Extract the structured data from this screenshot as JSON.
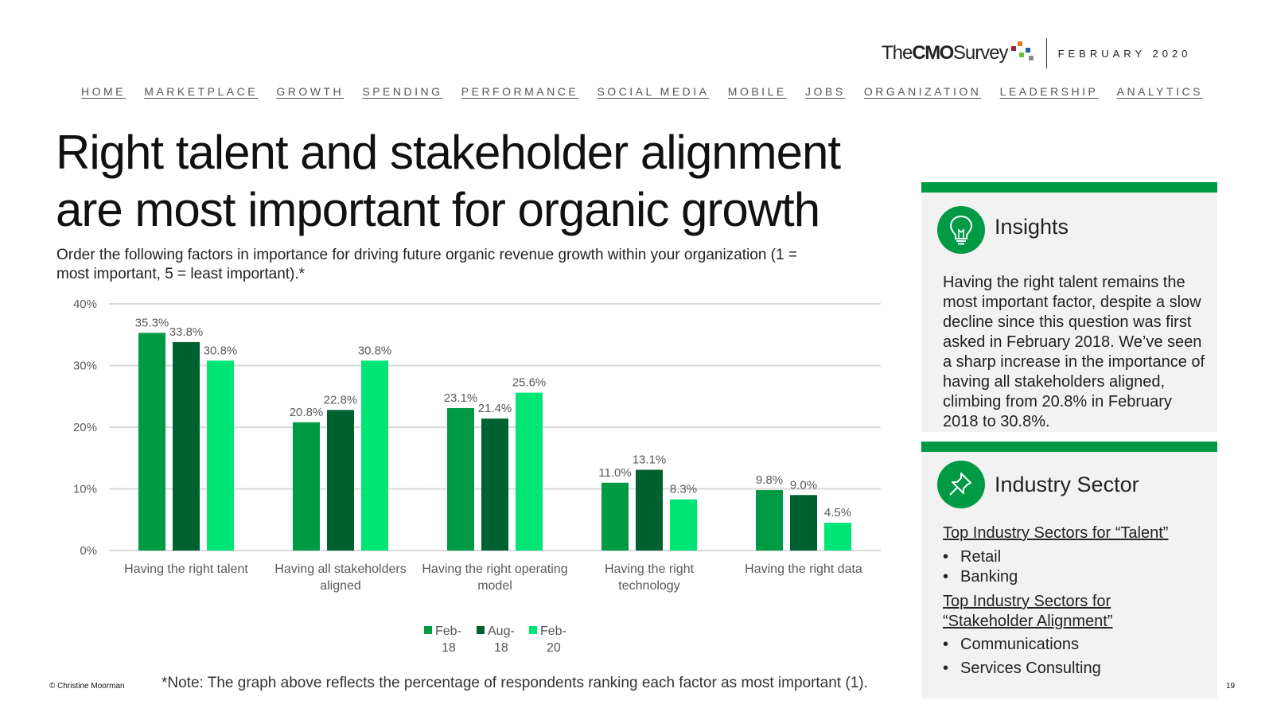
{
  "header": {
    "brand_prefix": "The",
    "brand_bold": "CMO",
    "brand_suffix": "Survey",
    "date": "FEBRUARY 2020",
    "nav": [
      "HOME",
      "MARKETPLACE",
      "GROWTH",
      "SPENDING",
      "PERFORMANCE",
      "SOCIAL MEDIA",
      "MOBILE",
      "JOBS",
      "ORGANIZATION",
      "LEADERSHIP",
      "ANALYTICS"
    ],
    "dot_colors": [
      "#9b2335",
      "#e07b1a",
      "#1f5fa8",
      "#6bbf3b",
      "#8a8a8a"
    ]
  },
  "title": "Right talent and stakeholder alignment are most important for organic growth",
  "question": "Order the following factors in importance for driving future organic revenue growth within your organization (1 = most important, 5 = least important).*",
  "chart_data": {
    "type": "bar",
    "title": "",
    "xlabel": "",
    "ylabel": "",
    "ylim": [
      0,
      40
    ],
    "yticks": [
      "0%",
      "10%",
      "20%",
      "30%",
      "40%"
    ],
    "grid": true,
    "categories": [
      [
        "Having the right talent"
      ],
      [
        "Having all stakeholders",
        "aligned"
      ],
      [
        "Having the right operating",
        "model"
      ],
      [
        "Having the right",
        "technology"
      ],
      [
        "Having the right data"
      ]
    ],
    "series": [
      {
        "name": "Feb-18",
        "legend_lines": [
          "Feb-",
          "18"
        ],
        "color": "#009a44",
        "values": [
          35.3,
          20.8,
          23.1,
          11.0,
          9.8
        ],
        "labels": [
          "35.3%",
          "20.8%",
          "23.1%",
          "11.0%",
          "9.8%"
        ]
      },
      {
        "name": "Aug-18",
        "legend_lines": [
          "Aug-",
          "18"
        ],
        "color": "#006130",
        "values": [
          33.8,
          22.8,
          21.4,
          13.1,
          9.0
        ],
        "labels": [
          "33.8%",
          "22.8%",
          "21.4%",
          "13.1%",
          "9.0%"
        ]
      },
      {
        "name": "Feb-20",
        "legend_lines": [
          "Feb-",
          "20"
        ],
        "color": "#00e676",
        "values": [
          30.8,
          30.8,
          25.6,
          8.3,
          4.5
        ],
        "labels": [
          "30.8%",
          "30.8%",
          "25.6%",
          "8.3%",
          "4.5%"
        ]
      }
    ]
  },
  "note": "*Note: The graph above reflects the percentage of respondents ranking each factor as most important (1).",
  "copyright": "© Christine Moorman",
  "page_number": "19",
  "insights": {
    "heading": "Insights",
    "body": "Having the right talent remains the most important factor, despite a slow decline since this question was first asked in February 2018. We’ve seen a sharp increase in the importance of having all stakeholders aligned, climbing from 20.8% in February 2018 to 30.8%."
  },
  "industry": {
    "heading": "Industry Sector",
    "talent_title": "Top Industry Sectors for “Talent”",
    "talent_items": [
      "Retail",
      "Banking"
    ],
    "stakeholder_title": "Top Industry Sectors for “Stakeholder Alignment”",
    "stakeholder_items": [
      "Communications",
      "Services Consulting"
    ]
  }
}
